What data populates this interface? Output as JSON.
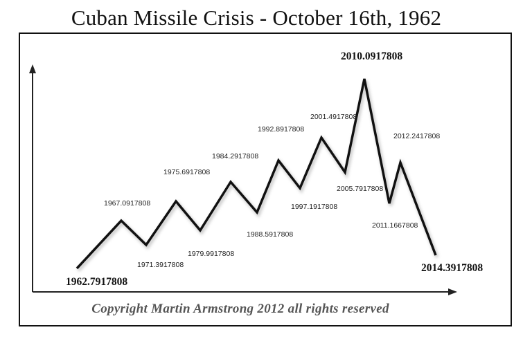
{
  "title": "Cuban Missile Crisis - October 16th, 1962",
  "copyright": "Copyright Martin Armstrong 2012 all rights reserved",
  "chart_data": {
    "type": "line",
    "title": "Cuban Missile Crisis - October 16th, 1962",
    "x_axis": "time",
    "points": [
      {
        "label": "1962.7917808",
        "kind": "trough",
        "emphasis": true
      },
      {
        "label": "1967.0917808",
        "kind": "peak"
      },
      {
        "label": "1971.3917808",
        "kind": "trough"
      },
      {
        "label": "1975.6917808",
        "kind": "peak"
      },
      {
        "label": "1979.9917808",
        "kind": "trough"
      },
      {
        "label": "1984.2917808",
        "kind": "peak"
      },
      {
        "label": "1988.5917808",
        "kind": "trough"
      },
      {
        "label": "1992.8917808",
        "kind": "peak"
      },
      {
        "label": "1997.1917808",
        "kind": "trough"
      },
      {
        "label": "2001.4917808",
        "kind": "peak"
      },
      {
        "label": "2005.7917808",
        "kind": "trough"
      },
      {
        "label": "2010.0917808",
        "kind": "peak",
        "emphasis": true
      },
      {
        "label": "2011.1667808",
        "kind": "trough"
      },
      {
        "label": "2012.2417808",
        "kind": "peak"
      },
      {
        "label": "2014.3917808",
        "kind": "trough",
        "emphasis": true
      }
    ],
    "grid": false,
    "line_color": "#111111"
  }
}
